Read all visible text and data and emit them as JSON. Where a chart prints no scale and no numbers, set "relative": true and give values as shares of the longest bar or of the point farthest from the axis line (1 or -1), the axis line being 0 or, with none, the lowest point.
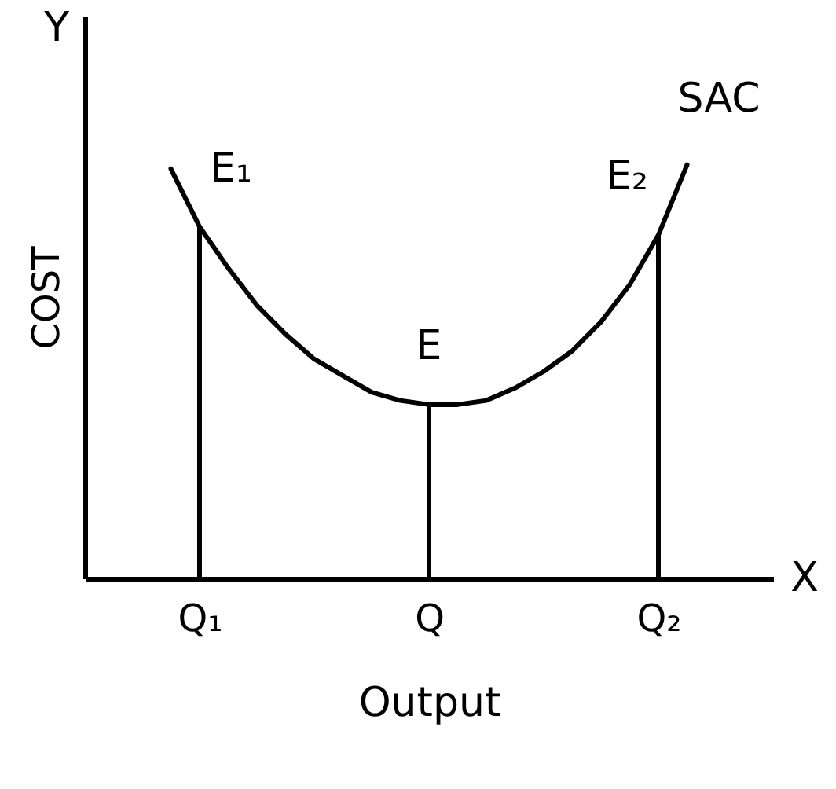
{
  "chart_data": {
    "type": "line",
    "xlabel": "Output",
    "ylabel": "COST",
    "relative": true,
    "tick_labels": "x",
    "categories": [
      null,
      null,
      null,
      null,
      "Q₁",
      null,
      null,
      null,
      null,
      null,
      null,
      null,
      "Q",
      null,
      null,
      null,
      null,
      null,
      null,
      null,
      "Q₂",
      null,
      null,
      null,
      null
    ],
    "series": [
      {
        "name": "SAC",
        "color": "#000000",
        "values": [
          null,
          null,
          null,
          0.99,
          0.85,
          0.75,
          0.66,
          0.59,
          0.53,
          0.49,
          0.45,
          0.43,
          0.42,
          0.42,
          0.43,
          0.46,
          0.5,
          0.55,
          0.62,
          0.71,
          0.83,
          1,
          null,
          null,
          null
        ]
      },
      {
        "type": "bar",
        "color": "#000000",
        "values": [
          null,
          null,
          null,
          null,
          0.85,
          null,
          null,
          null,
          null,
          null,
          null,
          null,
          0.42,
          null,
          null,
          null,
          null,
          null,
          null,
          null,
          0.83,
          null,
          null,
          null,
          null
        ]
      }
    ],
    "annotations": [
      {
        "text": "E₁",
        "x": "Q₁",
        "y": 0.85
      },
      {
        "text": "E",
        "x": "Q",
        "y": 0.42
      },
      {
        "text": "E₂",
        "x": "Q₂",
        "y": 0.83
      },
      "Y",
      "X"
    ]
  }
}
